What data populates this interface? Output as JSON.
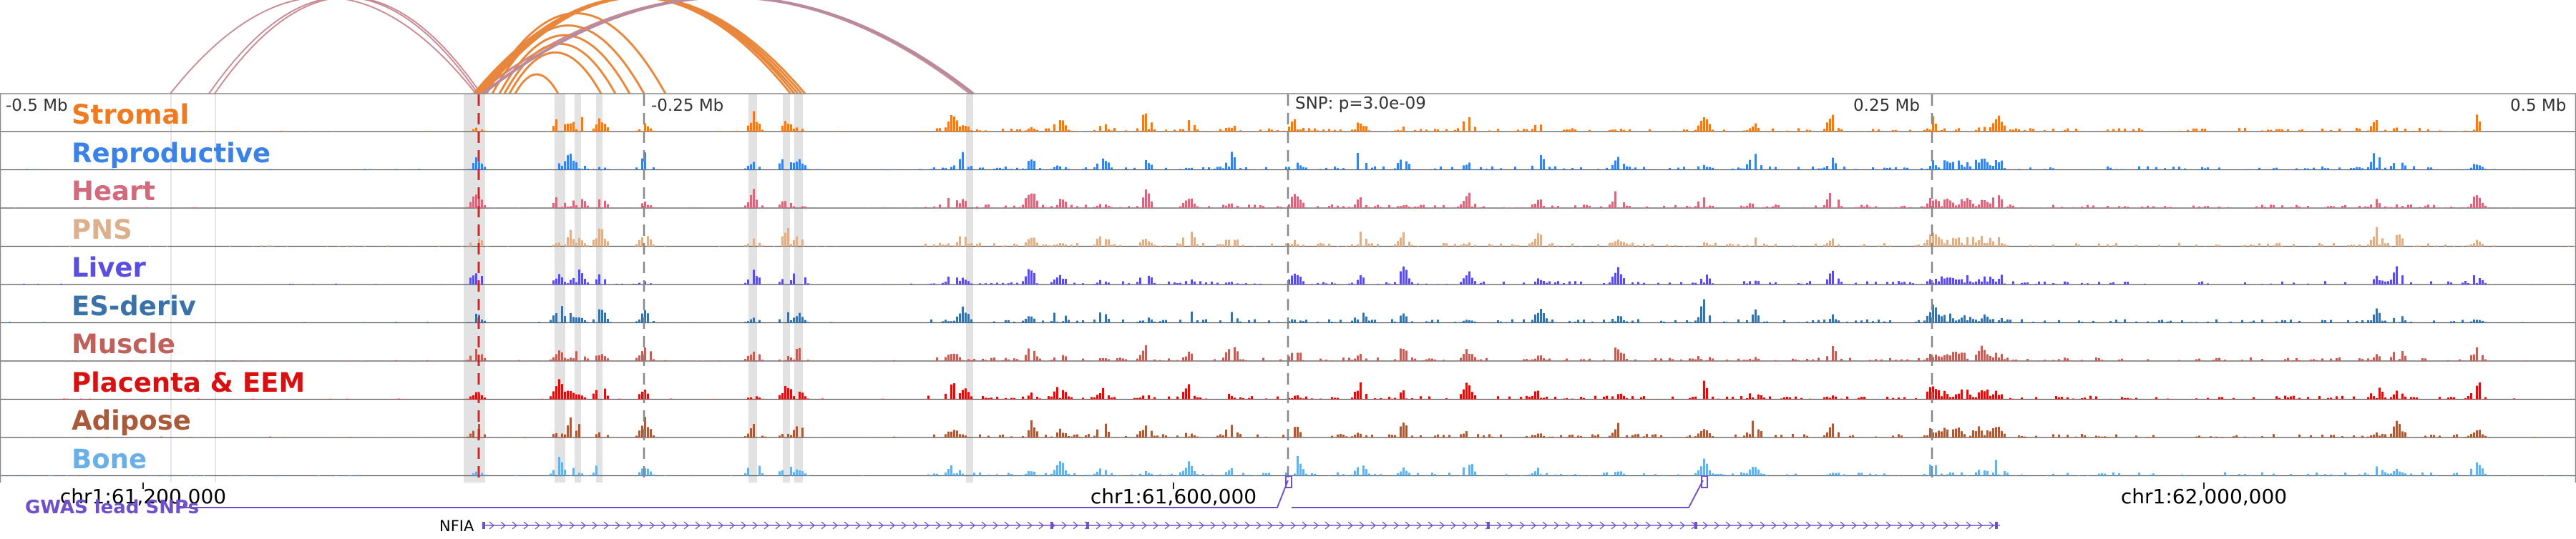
{
  "arcs": {
    "colors": {
      "pink": "#c98b93",
      "orange": "#e8873c",
      "mauve": "#b98a9e"
    },
    "pink": [
      [
        238,
        665
      ],
      [
        292,
        668
      ],
      [
        300,
        672
      ],
      [
        668,
        1355
      ],
      [
        665,
        1360
      ]
    ],
    "orange": [
      [
        662,
        1115
      ],
      [
        665,
        1120
      ],
      [
        668,
        1125
      ],
      [
        672,
        1105
      ],
      [
        675,
        1110
      ],
      [
        680,
        930
      ],
      [
        688,
        900
      ],
      [
        698,
        880
      ],
      [
        705,
        860
      ],
      [
        712,
        840
      ],
      [
        720,
        780
      ]
    ],
    "mauve": [
      [
        675,
        1360
      ]
    ]
  },
  "ruler": {
    "label_left": "-0.5 Mb",
    "label_q1": "-0.25 Mb",
    "label_snp": "SNP: p=3.0e-09",
    "label_q3": "0.25 Mb",
    "label_right": "0.5 Mb"
  },
  "tracks": [
    {
      "name": "Stromal",
      "color": "#f07a20"
    },
    {
      "name": "Reproductive",
      "color": "#3b82e8"
    },
    {
      "name": "Heart",
      "color": "#d2697c"
    },
    {
      "name": "PNS",
      "color": "#dcb08c"
    },
    {
      "name": "Liver",
      "color": "#5a4ee0"
    },
    {
      "name": "ES-deriv",
      "color": "#3a72a8"
    },
    {
      "name": "Muscle",
      "color": "#c0605a"
    },
    {
      "name": "Placenta & EEM",
      "color": "#d81010"
    },
    {
      "name": "Adipose",
      "color": "#a85a3a"
    },
    {
      "name": "Bone",
      "color": "#6ab0e8"
    }
  ],
  "axis": {
    "tick1": "chr1:61,200,000",
    "tick2": "chr1:61,600,000",
    "tick3": "chr1:62,000,000"
  },
  "gwas": {
    "label": "GWAS lead SNPs",
    "color": "#7050c8"
  },
  "gene": {
    "name": "NFIA",
    "color": "#7050c8"
  },
  "colors": {
    "highlight": "#d8d8d8",
    "snp_line": "#d02828",
    "boundary": "#888888"
  }
}
